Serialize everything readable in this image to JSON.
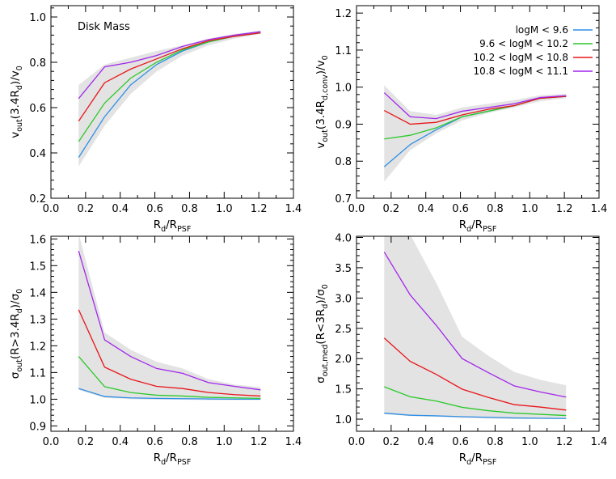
{
  "chart_data": [
    {
      "type": "line",
      "annotation": "Disk Mass",
      "xlabel": {
        "parts": [
          [
            "R",
            ""
          ],
          [
            "d",
            "sub"
          ],
          [
            "/R",
            ""
          ],
          [
            "PSF",
            "sub"
          ]
        ]
      },
      "ylabel": {
        "parts": [
          [
            "v",
            ""
          ],
          [
            "out",
            "sub"
          ],
          [
            "(3.4R",
            ""
          ],
          [
            "d",
            "sub"
          ],
          [
            ")/v",
            ""
          ],
          [
            "0",
            "sub"
          ]
        ]
      },
      "xlim": [
        0.0,
        1.4
      ],
      "ylim": [
        0.2,
        1.05
      ],
      "xticks": [
        "0.0",
        "0.2",
        "0.4",
        "0.6",
        "0.8",
        "1.0",
        "1.2",
        "1.4"
      ],
      "yticks": [
        "0.2",
        "0.4",
        "0.6",
        "0.8",
        "1.0"
      ],
      "x": [
        0.16,
        0.31,
        0.46,
        0.61,
        0.76,
        0.91,
        1.06,
        1.21
      ],
      "band": {
        "upper": [
          0.7,
          0.79,
          0.82,
          0.85,
          0.875,
          0.905,
          0.925,
          0.94
        ],
        "lower": [
          0.34,
          0.52,
          0.66,
          0.76,
          0.83,
          0.875,
          0.905,
          0.925
        ]
      },
      "series": [
        {
          "values": [
            0.38,
            0.56,
            0.7,
            0.79,
            0.85,
            0.89,
            0.915,
            0.93
          ]
        },
        {
          "values": [
            0.45,
            0.62,
            0.73,
            0.8,
            0.855,
            0.89,
            0.915,
            0.93
          ]
        },
        {
          "values": [
            0.54,
            0.71,
            0.77,
            0.815,
            0.86,
            0.895,
            0.915,
            0.93
          ]
        },
        {
          "values": [
            0.64,
            0.78,
            0.8,
            0.83,
            0.87,
            0.9,
            0.92,
            0.935
          ]
        }
      ]
    },
    {
      "type": "line",
      "xlabel": {
        "parts": [
          [
            "R",
            ""
          ],
          [
            "d",
            "sub"
          ],
          [
            "/R",
            ""
          ],
          [
            "PSF",
            "sub"
          ]
        ]
      },
      "ylabel": {
        "parts": [
          [
            "v",
            ""
          ],
          [
            "out",
            "sub"
          ],
          [
            "(3.4R",
            ""
          ],
          [
            "d,conv",
            "sub"
          ],
          [
            ")/v",
            ""
          ],
          [
            "0",
            "sub"
          ]
        ]
      },
      "xlim": [
        0.0,
        1.4
      ],
      "ylim": [
        0.7,
        1.22
      ],
      "xticks": [
        "0.0",
        "0.2",
        "0.4",
        "0.6",
        "0.8",
        "1.0",
        "1.2",
        "1.4"
      ],
      "yticks": [
        "0.7",
        "0.8",
        "0.9",
        "1.0",
        "1.1",
        "1.2"
      ],
      "x": [
        0.16,
        0.31,
        0.46,
        0.61,
        0.76,
        0.91,
        1.06,
        1.21
      ],
      "band": {
        "upper": [
          1.005,
          0.935,
          0.925,
          0.945,
          0.955,
          0.965,
          0.978,
          0.982
        ],
        "lower": [
          0.745,
          0.83,
          0.875,
          0.91,
          0.93,
          0.945,
          0.962,
          0.97
        ]
      },
      "series": [
        {
          "values": [
            0.785,
            0.845,
            0.885,
            0.92,
            0.935,
            0.95,
            0.97,
            0.975
          ]
        },
        {
          "values": [
            0.86,
            0.87,
            0.89,
            0.92,
            0.935,
            0.95,
            0.97,
            0.975
          ]
        },
        {
          "values": [
            0.937,
            0.9,
            0.905,
            0.925,
            0.94,
            0.95,
            0.97,
            0.975
          ]
        },
        {
          "values": [
            0.985,
            0.92,
            0.915,
            0.935,
            0.945,
            0.955,
            0.972,
            0.977
          ]
        }
      ],
      "legend": {
        "placement": "top-right",
        "entries": [
          {
            "label": "logM < 9.6",
            "color": "#2f8fe6"
          },
          {
            "label": "9.6 < logM < 10.2",
            "color": "#2cc92c"
          },
          {
            "label": "10.2 < logM < 10.8",
            "color": "#e8161a"
          },
          {
            "label": "10.8 < logM < 11.1",
            "color": "#a227ea"
          }
        ]
      }
    },
    {
      "type": "line",
      "xlabel": {
        "parts": [
          [
            "R",
            ""
          ],
          [
            "d",
            "sub"
          ],
          [
            "/R",
            ""
          ],
          [
            "PSF",
            "sub"
          ]
        ]
      },
      "ylabel": {
        "parts": [
          [
            "σ",
            ""
          ],
          [
            "out",
            "sub"
          ],
          [
            "(R>3.4R",
            ""
          ],
          [
            "d",
            "sub"
          ],
          [
            ")/σ",
            ""
          ],
          [
            "0",
            "sub"
          ]
        ]
      },
      "xlim": [
        0.0,
        1.4
      ],
      "ylim": [
        0.88,
        1.61
      ],
      "xticks": [
        "0.0",
        "0.2",
        "0.4",
        "0.6",
        "0.8",
        "1.0",
        "1.2",
        "1.4"
      ],
      "yticks": [
        "0.9",
        "1.0",
        "1.1",
        "1.2",
        "1.3",
        "1.4",
        "1.5",
        "1.6"
      ],
      "x": [
        0.16,
        0.31,
        0.46,
        0.61,
        0.76,
        0.91,
        1.06,
        1.21
      ],
      "band": {
        "upper": [
          1.62,
          1.25,
          1.185,
          1.14,
          1.115,
          1.075,
          1.055,
          1.045
        ],
        "lower": [
          1.035,
          1.005,
          1.0,
          0.998,
          0.998,
          0.997,
          0.997,
          0.997
        ]
      },
      "series": [
        {
          "values": [
            1.04,
            1.01,
            1.005,
            1.003,
            1.002,
            1.001,
            1.0,
            1.0
          ]
        },
        {
          "values": [
            1.16,
            1.047,
            1.025,
            1.015,
            1.012,
            1.007,
            1.005,
            1.003
          ]
        },
        {
          "values": [
            1.335,
            1.12,
            1.075,
            1.048,
            1.04,
            1.025,
            1.017,
            1.012
          ]
        },
        {
          "values": [
            1.555,
            1.222,
            1.16,
            1.115,
            1.097,
            1.062,
            1.048,
            1.035
          ]
        }
      ]
    },
    {
      "type": "line",
      "xlabel": {
        "parts": [
          [
            "R",
            ""
          ],
          [
            "d",
            "sub"
          ],
          [
            "/R",
            ""
          ],
          [
            "PSF",
            "sub"
          ]
        ]
      },
      "ylabel": {
        "parts": [
          [
            "σ",
            ""
          ],
          [
            "out,med",
            "sub"
          ],
          [
            "(R<3R",
            ""
          ],
          [
            "d",
            "sub"
          ],
          [
            ")/σ",
            ""
          ],
          [
            "0",
            "sub"
          ]
        ]
      },
      "xlim": [
        0.0,
        1.4
      ],
      "ylim": [
        0.8,
        4.02
      ],
      "xticks": [
        "0.0",
        "0.2",
        "0.4",
        "0.6",
        "0.8",
        "1.0",
        "1.2",
        "1.4"
      ],
      "yticks": [
        "1.0",
        "1.5",
        "2.0",
        "2.5",
        "3.0",
        "3.5",
        "4.0"
      ],
      "x": [
        0.16,
        0.31,
        0.46,
        0.61,
        0.76,
        0.91,
        1.06,
        1.21
      ],
      "band": {
        "upper": [
          4.05,
          4.05,
          3.25,
          2.36,
          2.05,
          1.78,
          1.65,
          1.56
        ],
        "lower": [
          1.08,
          1.05,
          1.04,
          1.02,
          1.01,
          1.0,
          1.0,
          1.0
        ]
      },
      "series": [
        {
          "values": [
            1.1,
            1.065,
            1.055,
            1.04,
            1.03,
            1.02,
            1.015,
            1.01
          ]
        },
        {
          "values": [
            1.535,
            1.37,
            1.3,
            1.195,
            1.14,
            1.1,
            1.08,
            1.06
          ]
        },
        {
          "values": [
            2.34,
            1.955,
            1.74,
            1.495,
            1.36,
            1.24,
            1.2,
            1.15
          ]
        },
        {
          "values": [
            3.76,
            3.05,
            2.55,
            2.0,
            1.77,
            1.55,
            1.45,
            1.365
          ]
        }
      ]
    }
  ],
  "series_colors": [
    "#2f8fe6",
    "#2cc92c",
    "#e8161a",
    "#a227ea"
  ]
}
